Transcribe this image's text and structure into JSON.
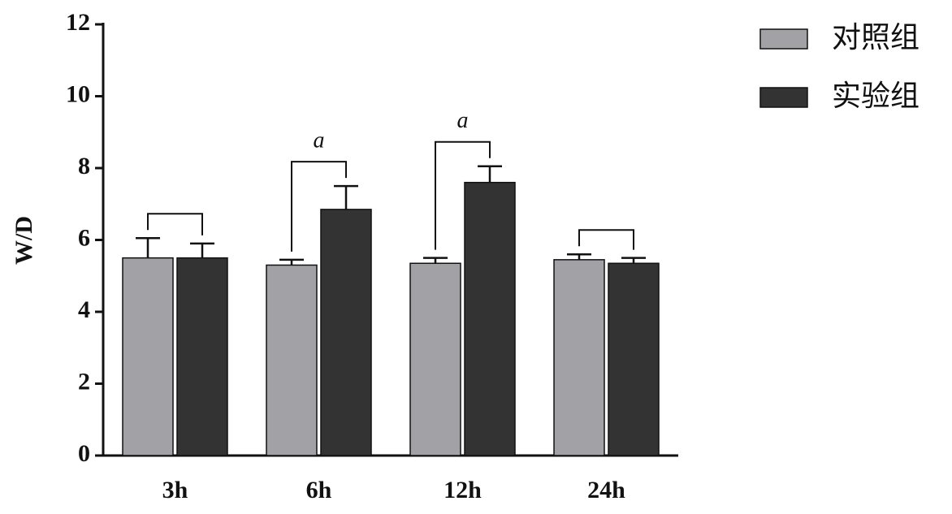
{
  "chart_data": {
    "type": "bar",
    "y_label": "W/D",
    "categories": [
      "3h",
      "6h",
      "12h",
      "24h"
    ],
    "series": [
      {
        "name": "对照组",
        "color": "#a2a2a6",
        "values": [
          5.5,
          5.3,
          5.35,
          5.45
        ],
        "errors": [
          0.55,
          0.15,
          0.15,
          0.15
        ]
      },
      {
        "name": "实验组",
        "color": "#333333",
        "values": [
          5.5,
          6.85,
          7.6,
          5.35
        ],
        "errors": [
          0.4,
          0.65,
          0.45,
          0.15
        ]
      }
    ],
    "annotations": [
      {
        "category": "6h",
        "text": "a"
      },
      {
        "category": "12h",
        "text": "a"
      }
    ],
    "ylim": [
      0,
      12
    ],
    "yticks": [
      0,
      2,
      4,
      6,
      8,
      10,
      12
    ],
    "legend": "top-right"
  }
}
